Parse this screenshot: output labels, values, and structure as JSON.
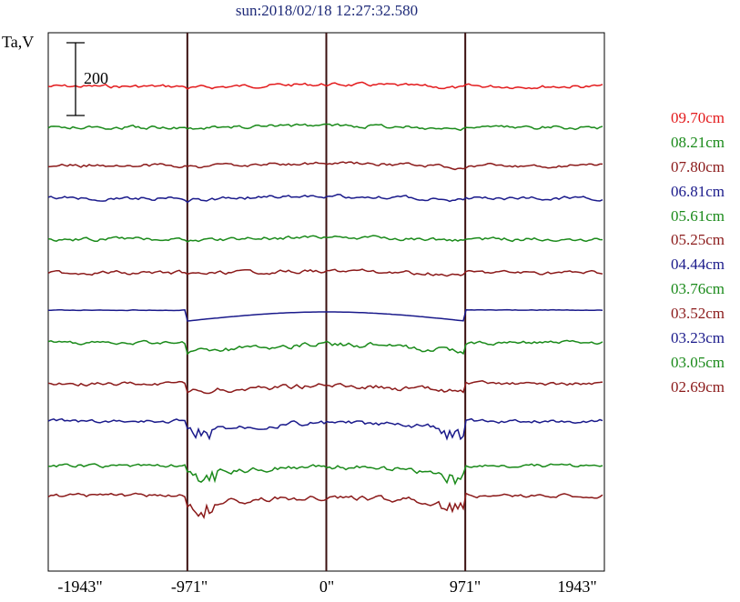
{
  "chart_data": {
    "type": "line",
    "title": "sun:2018/02/18 12:27:32.580",
    "ylabel": "Ta,V",
    "xlabel": "",
    "scale_bar": {
      "label": "200",
      "value": 200
    },
    "x_ticks": [
      {
        "value": -1943,
        "label": "-1943\""
      },
      {
        "value": -971,
        "label": "-971\""
      },
      {
        "value": 0,
        "label": "0\""
      },
      {
        "value": 971,
        "label": "971\""
      },
      {
        "value": 1943,
        "label": "1943\""
      }
    ],
    "xlim": [
      -1943,
      1943
    ],
    "grid": false,
    "legend_position": "right",
    "series": [
      {
        "name": "09.70cm",
        "color": "#e31a1c"
      },
      {
        "name": "08.21cm",
        "color": "#1a8a1a"
      },
      {
        "name": "07.80cm",
        "color": "#8b1a1a"
      },
      {
        "name": "06.81cm",
        "color": "#1a1a8b"
      },
      {
        "name": "05.61cm",
        "color": "#1a8a1a"
      },
      {
        "name": "05.25cm",
        "color": "#8b1a1a"
      },
      {
        "name": "04.44cm",
        "color": "#1a1a8b"
      },
      {
        "name": "03.76cm",
        "color": "#1a8a1a"
      },
      {
        "name": "03.52cm",
        "color": "#8b1a1a"
      },
      {
        "name": "03.23cm",
        "color": "#1a1a8b"
      },
      {
        "name": "03.05cm",
        "color": "#1a8a1a"
      },
      {
        "name": "02.69cm",
        "color": "#8b1a1a"
      }
    ]
  }
}
